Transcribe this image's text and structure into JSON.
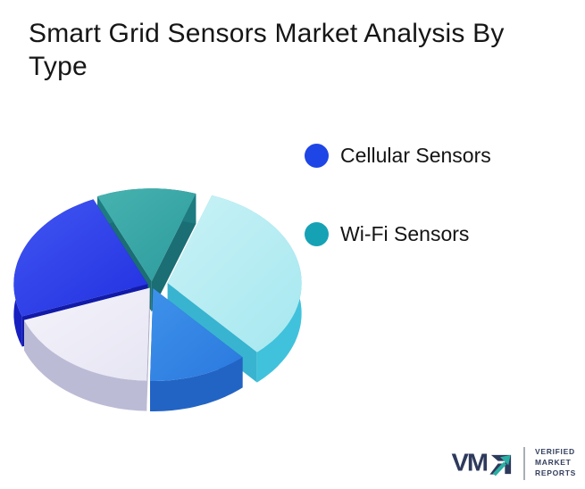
{
  "page": {
    "background": "#ffffff"
  },
  "title": {
    "text": "Smart Grid Sensors Market Analysis By Type"
  },
  "chart_data": {
    "type": "pie",
    "style": "3d-exploded",
    "title": "Smart Grid Sensors Market Analysis By Type",
    "legend_position": "right",
    "values_shown_on_chart": false,
    "start_angle_deg": 70.7,
    "direction": "counterclockwise",
    "legend": [
      {
        "label": "Cellular Sensors",
        "color": "#1E45E6"
      },
      {
        "label": "Wi-Fi Sensors",
        "color": "#16A2B5"
      }
    ],
    "slices": [
      {
        "label": "Wi-Fi Sensors",
        "value": 12,
        "color": "#2F9C9E",
        "color_light": "#46B3B0",
        "side_color": "#1E7B80",
        "cut_color": "#1A6E74",
        "explode": 6,
        "draw_order": 0
      },
      {
        "label": "Cellular Sensors",
        "value": 24,
        "color": "#2433E1",
        "color_light": "#4156F2",
        "side_color": "#171FC0",
        "cut_color": "#121AA8",
        "explode": 5,
        "draw_order": 1
      },
      {
        "label": "",
        "value": 19,
        "color": "#E7E6F3",
        "color_light": "#F4F3FB",
        "side_color": "#BCBBD6",
        "cut_color": "#AFAECB",
        "explode": 4,
        "draw_order": 3
      },
      {
        "label": "",
        "value": 12,
        "color": "#2C7ADF",
        "color_light": "#3E92EA",
        "side_color": "#2264C4",
        "cut_color": "#1C58B0",
        "explode": 4,
        "draw_order": 4
      },
      {
        "label": "",
        "value": 33,
        "color": "#A8E8F0",
        "color_light": "#C8F2F6",
        "side_color": "#41C2DC",
        "cut_color": "#38B4D0",
        "explode": 18,
        "draw_order": 2
      }
    ]
  },
  "logo": {
    "wordmark": "VM",
    "tagline_lines": [
      "VERIFIED",
      "MARKET",
      "REPORTS"
    ],
    "navy": "#2E3A5C",
    "teal": "#2BAFA4"
  }
}
